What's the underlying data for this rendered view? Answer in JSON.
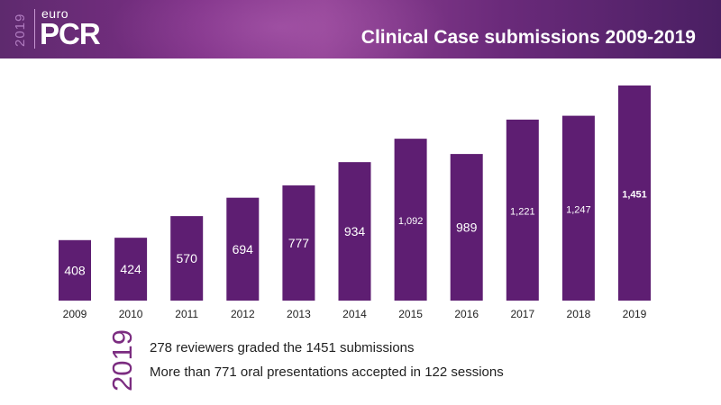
{
  "header": {
    "logo_year": "2019",
    "logo_euro": "euro",
    "logo_brand": "PCR",
    "title": "Clinical Case submissions 2009-2019"
  },
  "colors": {
    "bar": "#5e1e72",
    "accent": "#7b2c80",
    "label_text": "#ffffff",
    "axis_text": "#222222"
  },
  "chart_data": {
    "type": "bar",
    "categories": [
      "2009",
      "2010",
      "2011",
      "2012",
      "2013",
      "2014",
      "2015",
      "2016",
      "2017",
      "2018",
      "2019"
    ],
    "values": [
      408,
      424,
      570,
      694,
      777,
      934,
      1092,
      989,
      1221,
      1247,
      1451
    ],
    "data_labels": [
      "408",
      "424",
      "570",
      "694",
      "777",
      "934",
      "1,092",
      "989",
      "1,221",
      "1,247",
      "1,451"
    ],
    "title": "Clinical Case submissions 2009-2019",
    "xlabel": "",
    "ylabel": "",
    "ylim": [
      0,
      1500
    ],
    "grid": false,
    "legend": "none"
  },
  "footer": {
    "year": "2019",
    "line1": "278 reviewers graded the 1451 submissions",
    "line2": "More than 771 oral presentations accepted in 122 sessions"
  }
}
